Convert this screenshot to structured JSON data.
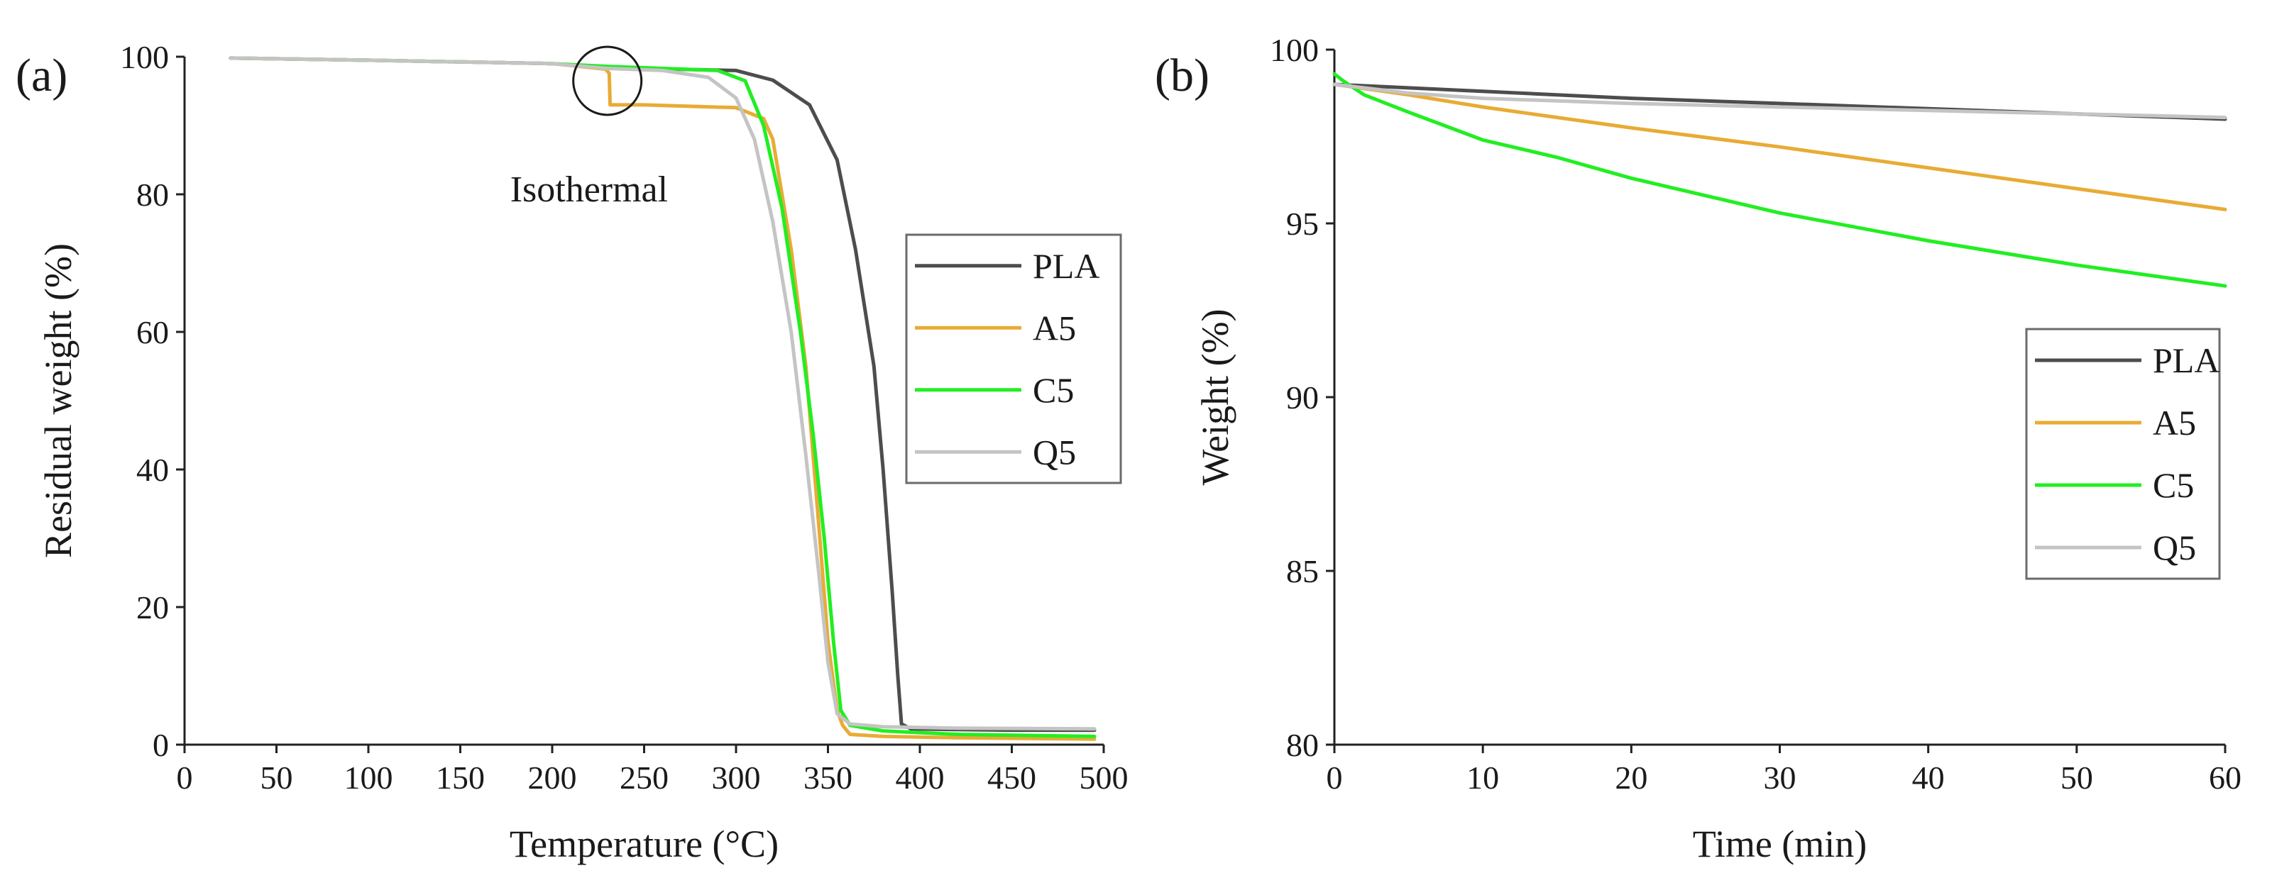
{
  "colors": {
    "PLA": "#4d4d4d",
    "A5": "#e8ab35",
    "C5": "#22ee22",
    "Q5": "#c4c4c4"
  },
  "chart_data": [
    {
      "id": "a",
      "panel_label": "(a)",
      "type": "line",
      "xlabel": "Temperature (°C)",
      "ylabel": "Residual weight (%)",
      "xlim": [
        0,
        500
      ],
      "ylim": [
        0,
        100
      ],
      "xticks": [
        0,
        50,
        100,
        150,
        200,
        250,
        300,
        350,
        400,
        450,
        500
      ],
      "yticks": [
        0,
        20,
        40,
        60,
        80,
        100
      ],
      "grid": false,
      "legend_position": "center-right",
      "annotation": {
        "text": "Isothermal",
        "x": 230,
        "y": 96.5
      },
      "series": [
        {
          "name": "PLA",
          "x": [
            25,
            100,
            200,
            230,
            300,
            320,
            340,
            355,
            365,
            375,
            380,
            385,
            388,
            390,
            395,
            420,
            450,
            495
          ],
          "y": [
            99.8,
            99.5,
            99.0,
            98.4,
            98.0,
            96.6,
            93.0,
            85.0,
            72.0,
            55.0,
            40.0,
            22.0,
            10.0,
            3.0,
            2.3,
            2.2,
            2.1,
            2.1
          ]
        },
        {
          "name": "A5",
          "x": [
            25,
            100,
            200,
            229,
            231,
            231.5,
            250,
            300,
            315,
            320,
            330,
            338,
            345,
            350,
            355,
            358,
            362,
            380,
            420,
            495
          ],
          "y": [
            99.8,
            99.5,
            99.0,
            98.2,
            97.6,
            93.0,
            93.0,
            92.6,
            91.0,
            88.0,
            72.0,
            55.0,
            32.0,
            15.0,
            5.0,
            2.8,
            1.5,
            1.2,
            1.0,
            0.8
          ]
        },
        {
          "name": "C5",
          "x": [
            25,
            100,
            200,
            230,
            250,
            290,
            305,
            315,
            325,
            335,
            342,
            348,
            353,
            357,
            362,
            380,
            420,
            495
          ],
          "y": [
            99.8,
            99.5,
            99.0,
            98.6,
            98.4,
            98.0,
            96.5,
            90.0,
            78.0,
            60.0,
            45.0,
            30.0,
            15.0,
            5.0,
            2.8,
            2.0,
            1.5,
            1.2
          ]
        },
        {
          "name": "Q5",
          "x": [
            25,
            100,
            200,
            230,
            260,
            285,
            300,
            310,
            320,
            330,
            338,
            345,
            350,
            355,
            362,
            380,
            420,
            495
          ],
          "y": [
            99.8,
            99.5,
            99.0,
            98.3,
            98.0,
            97.0,
            94.0,
            88.0,
            76.0,
            60.0,
            42.0,
            25.0,
            12.0,
            4.5,
            3.0,
            2.6,
            2.4,
            2.3
          ]
        }
      ]
    },
    {
      "id": "b",
      "panel_label": "(b)",
      "type": "line",
      "xlabel": "Time (min)",
      "ylabel": "Weight (%)",
      "xlim": [
        0,
        60
      ],
      "ylim": [
        80,
        100
      ],
      "xticks": [
        0,
        10,
        20,
        30,
        40,
        50,
        60
      ],
      "yticks": [
        80,
        85,
        90,
        95,
        100
      ],
      "grid": false,
      "legend_position": "right",
      "series": [
        {
          "name": "PLA",
          "x": [
            0,
            10,
            20,
            30,
            40,
            50,
            60
          ],
          "y": [
            99.0,
            98.8,
            98.6,
            98.45,
            98.3,
            98.15,
            98.0
          ]
        },
        {
          "name": "A5",
          "x": [
            0,
            5,
            10,
            20,
            30,
            40,
            50,
            60
          ],
          "y": [
            99.0,
            98.7,
            98.35,
            97.75,
            97.2,
            96.6,
            96.0,
            95.4
          ]
        },
        {
          "name": "C5",
          "x": [
            0,
            0.6,
            2,
            5,
            10,
            15,
            20,
            30,
            40,
            50,
            60
          ],
          "y": [
            99.3,
            99.1,
            98.7,
            98.2,
            97.4,
            96.9,
            96.3,
            95.3,
            94.5,
            93.8,
            93.2
          ]
        },
        {
          "name": "Q5",
          "x": [
            0,
            5,
            10,
            20,
            30,
            40,
            50,
            60
          ],
          "y": [
            99.0,
            98.75,
            98.6,
            98.45,
            98.35,
            98.25,
            98.15,
            98.05
          ]
        }
      ]
    }
  ]
}
